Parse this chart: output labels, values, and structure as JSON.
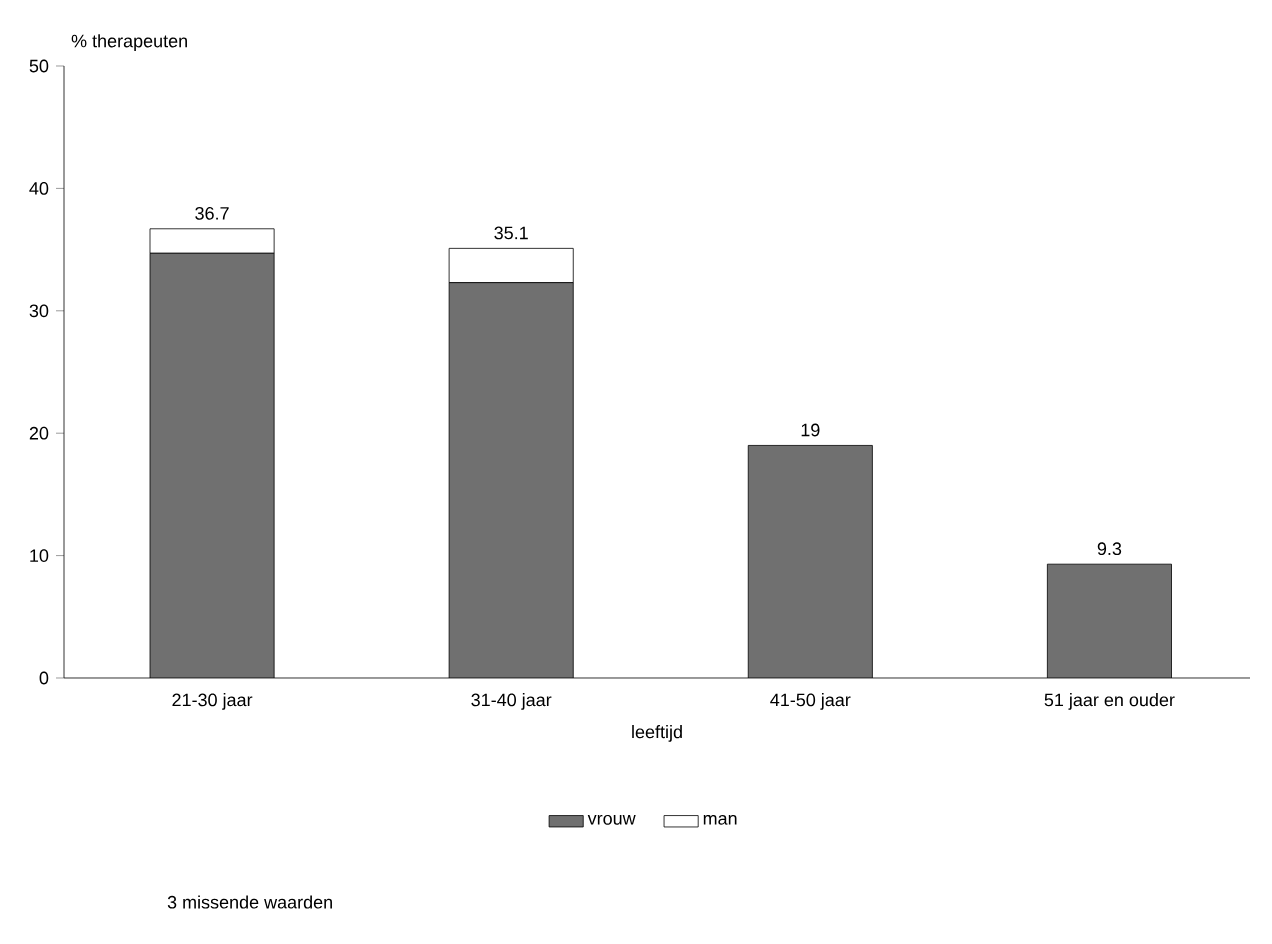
{
  "chart_data": {
    "type": "bar",
    "stacked": true,
    "ylabel": "% therapeuten",
    "xlabel": "leeftijd",
    "categories": [
      "21-30 jaar",
      "31-40 jaar",
      "41-50 jaar",
      "51 jaar en ouder"
    ],
    "series": [
      {
        "name": "vrouw",
        "color": "#707070",
        "values": [
          34.7,
          32.3,
          19,
          9.3
        ]
      },
      {
        "name": "man",
        "color": "#ffffff",
        "values": [
          2.0,
          2.8,
          0,
          0
        ]
      }
    ],
    "totals": [
      "36.7",
      "35.1",
      "19",
      "9.3"
    ],
    "ylim": [
      0,
      50
    ],
    "yticks": [
      0,
      10,
      20,
      30,
      40,
      50
    ],
    "legend": "bottom",
    "grid": false,
    "annotations": [
      "3 missende waarden"
    ]
  }
}
